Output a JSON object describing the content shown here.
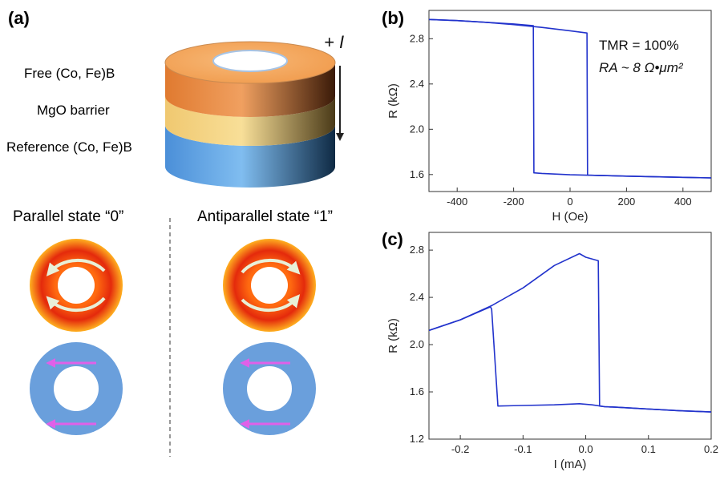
{
  "panels": {
    "a": {
      "label": "(a)",
      "layers": {
        "free": "Free (Co, Fe)B",
        "barrier": "MgO barrier",
        "reference": "Reference (Co, Fe)B"
      },
      "current_label": "+ I",
      "states": {
        "parallel": "Parallel state “0”",
        "antiparallel": "Antiparallel state “1”"
      }
    },
    "b": {
      "label": "(b)",
      "annotation_tmr": "TMR = 100%",
      "annotation_ra": "RA ~ 8 Ω•μm²"
    },
    "c": {
      "label": "(c)"
    }
  },
  "colors": {
    "curve": "#2233cc",
    "free_layer": "#f0a060",
    "barrier_layer": "#f5d47a",
    "reference_layer": "#5aa0e0",
    "hot_ring": "#e83010",
    "blue_ring": "#6a9fdc",
    "arrow_magenta": "#e060e8",
    "arrow_white": "#e8f0d8"
  },
  "chart_data": [
    {
      "type": "line",
      "panel": "b",
      "title": "",
      "xlabel": "H (Oe)",
      "ylabel": "R (kΩ)",
      "xlim": [
        -500,
        500
      ],
      "ylim": [
        1.45,
        3.05
      ],
      "xticks": [
        -400,
        -200,
        0,
        200,
        400
      ],
      "yticks": [
        1.6,
        2.0,
        2.4,
        2.8
      ],
      "series": [
        {
          "x": [
            -500,
            -400,
            -300,
            -200,
            -130,
            -128,
            -100,
            0,
            100,
            200,
            300,
            400,
            500
          ],
          "y": [
            2.97,
            2.96,
            2.945,
            2.93,
            2.915,
            1.615,
            1.61,
            1.598,
            1.592,
            1.586,
            1.58,
            1.575,
            1.57
          ]
        },
        {
          "x": [
            500,
            400,
            300,
            200,
            100,
            62,
            60,
            0,
            -100,
            -200,
            -300,
            -400,
            -500
          ],
          "y": [
            1.57,
            1.575,
            1.58,
            1.586,
            1.592,
            1.595,
            2.85,
            2.87,
            2.9,
            2.925,
            2.945,
            2.96,
            2.97
          ]
        }
      ]
    },
    {
      "type": "line",
      "panel": "c",
      "title": "",
      "xlabel": "I (mA)",
      "ylabel": "R (kΩ)",
      "xlim": [
        -0.25,
        0.2
      ],
      "ylim": [
        1.2,
        2.95
      ],
      "xticks": [
        -0.2,
        -0.1,
        0.0,
        0.1,
        0.2
      ],
      "yticks": [
        1.2,
        1.6,
        2.0,
        2.4,
        2.8
      ],
      "series": [
        {
          "x": [
            -0.25,
            -0.2,
            -0.152,
            -0.15,
            -0.14,
            -0.1,
            -0.05,
            -0.01,
            0.01,
            0.03,
            0.05,
            0.1,
            0.15,
            0.2
          ],
          "y": [
            2.12,
            2.21,
            2.32,
            2.3,
            1.48,
            1.485,
            1.49,
            1.5,
            1.49,
            1.475,
            1.47,
            1.455,
            1.44,
            1.43
          ]
        },
        {
          "x": [
            0.2,
            0.15,
            0.1,
            0.05,
            0.03,
            0.022,
            0.02,
            0.0,
            -0.01,
            -0.05,
            -0.1,
            -0.15,
            -0.2,
            -0.25
          ],
          "y": [
            1.43,
            1.44,
            1.455,
            1.47,
            1.475,
            1.48,
            2.71,
            2.74,
            2.77,
            2.67,
            2.48,
            2.33,
            2.21,
            2.12
          ]
        }
      ]
    }
  ]
}
